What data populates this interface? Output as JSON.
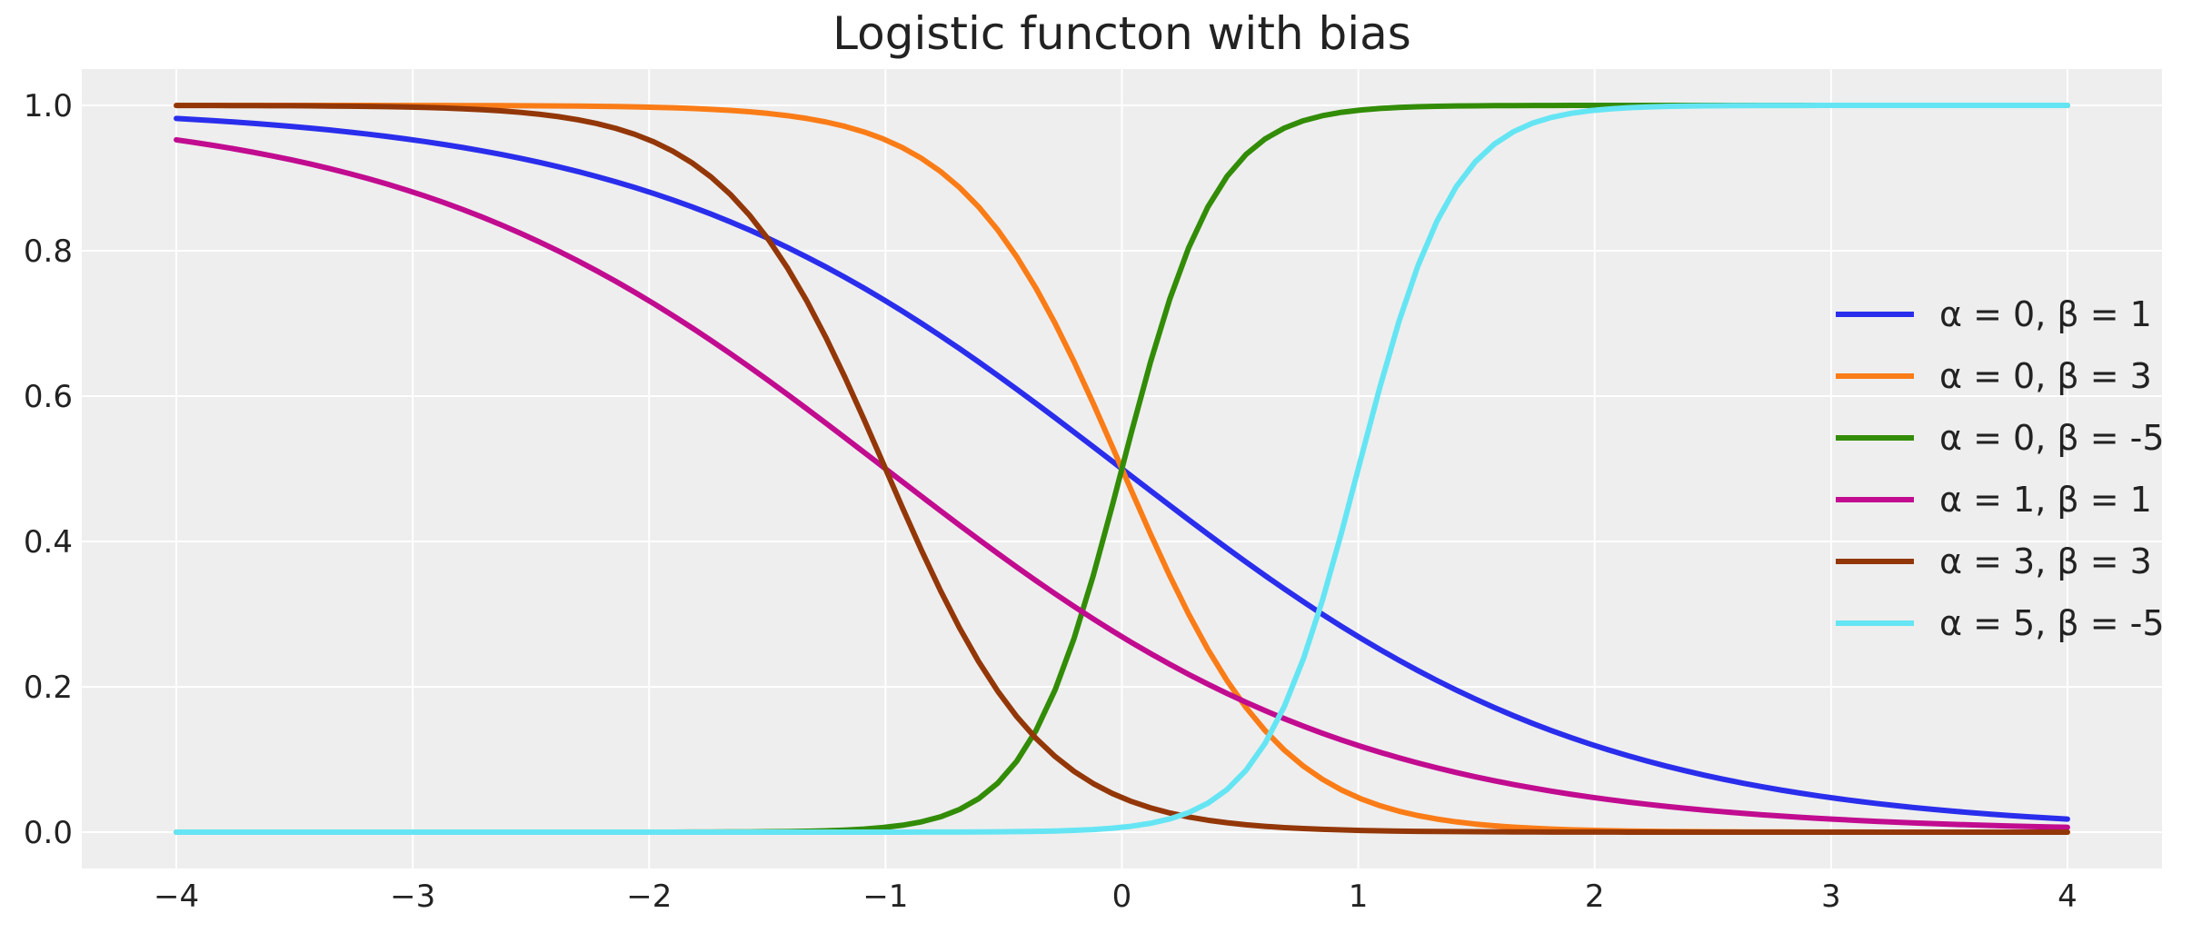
{
  "chart_data": {
    "type": "line",
    "title": "Logistic functon with bias",
    "xlabel": "",
    "ylabel": "",
    "xlim": [
      -4.4,
      4.4
    ],
    "ylim": [
      -0.05,
      1.05
    ],
    "x_ticks": [
      -4,
      -3,
      -2,
      -1,
      0,
      1,
      2,
      3,
      4
    ],
    "x_tick_labels": [
      "−4",
      "−3",
      "−2",
      "−1",
      "0",
      "1",
      "2",
      "3",
      "4"
    ],
    "y_ticks": [
      0.0,
      0.2,
      0.4,
      0.6,
      0.8,
      1.0
    ],
    "y_tick_labels": [
      "0.0",
      "0.2",
      "0.4",
      "0.6",
      "0.8",
      "1.0"
    ],
    "grid": true,
    "legend_position": "right",
    "x_range": [
      -4,
      4
    ],
    "samples": 100,
    "function": "1 / (1 + exp(beta * x + alpha))",
    "series": [
      {
        "name": "α = 0, β = 1",
        "alpha": 0,
        "beta": 1,
        "color": "#2a2eec"
      },
      {
        "name": "α = 0, β = 3",
        "alpha": 0,
        "beta": 3,
        "color": "#fa7c17"
      },
      {
        "name": "α = 0, β = -5",
        "alpha": 0,
        "beta": -5,
        "color": "#328c06"
      },
      {
        "name": "α = 1, β = 1",
        "alpha": 1,
        "beta": 1,
        "color": "#c10c90"
      },
      {
        "name": "α = 3, β = 3",
        "alpha": 3,
        "beta": 3,
        "color": "#933708"
      },
      {
        "name": "α = 5, β = -5",
        "alpha": 5,
        "beta": -5,
        "color": "#65e5f3"
      }
    ],
    "colors": {
      "plot_background": "#eeeeee",
      "grid": "#ffffff",
      "text": "#222222"
    }
  }
}
